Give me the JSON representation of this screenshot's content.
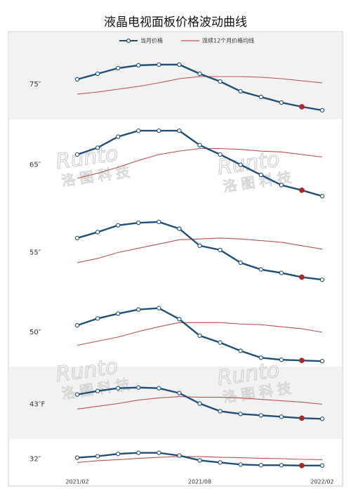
{
  "chart_data": {
    "type": "line",
    "title": "液晶电视面板价格波动曲线",
    "watermark": "Runto",
    "watermark_cn": "洛图科技",
    "categories": [
      "2021/02",
      null,
      null,
      null,
      null,
      null,
      "2021/08",
      null,
      null,
      null,
      null,
      null,
      "2022/02"
    ],
    "series": [
      {
        "name": "当月价格",
        "color": "#1f4e79",
        "marker": true
      },
      {
        "name": "连续12个月价格均线",
        "color": "#c0504d",
        "marker": false
      }
    ],
    "highlight_index": 11,
    "highlight_color": "#a52a2a",
    "panels": [
      {
        "label": "75″",
        "background": "#f2f2f2",
        "ylim": [
          0,
          100
        ],
        "values": [
          [
            57,
            65,
            73,
            77,
            78,
            78,
            65,
            54,
            40,
            32,
            24,
            18,
            13
          ],
          [
            36,
            39,
            43,
            47,
            52,
            58,
            61,
            61,
            61,
            60,
            58,
            55,
            52
          ]
        ]
      },
      {
        "label": "65″",
        "background": "#ffffff",
        "ylim": [
          0,
          100
        ],
        "values": [
          [
            62,
            70,
            83,
            90,
            90,
            90,
            73,
            62,
            50,
            38,
            26,
            20,
            13
          ],
          [
            34,
            40,
            47,
            55,
            62,
            66,
            69,
            69,
            68,
            66,
            65,
            62,
            59
          ]
        ]
      },
      {
        "label": "55″",
        "background": "#ffffff",
        "ylim": [
          0,
          100
        ],
        "values": [
          [
            67,
            74,
            82,
            85,
            86,
            78,
            58,
            53,
            38,
            30,
            26,
            21,
            18
          ],
          [
            38,
            43,
            50,
            55,
            60,
            65,
            66,
            67,
            66,
            64,
            62,
            58,
            54
          ]
        ]
      },
      {
        "label": "50″",
        "background": "#ffffff",
        "ylim": [
          0,
          100
        ],
        "values": [
          [
            60,
            70,
            77,
            83,
            85,
            69,
            45,
            35,
            23,
            13,
            10,
            9,
            8
          ],
          [
            31,
            37,
            43,
            51,
            58,
            64,
            64,
            64,
            62,
            61,
            58,
            55,
            50
          ]
        ]
      },
      {
        "label": "43″F",
        "background": "#f2f2f2",
        "ylim": [
          0,
          100
        ],
        "values": [
          [
            64,
            69,
            73,
            74,
            73,
            66,
            51,
            40,
            36,
            34,
            32,
            30,
            29
          ],
          [
            43,
            47,
            51,
            56,
            59,
            61,
            60,
            60,
            59,
            57,
            55,
            53,
            50
          ]
        ]
      },
      {
        "label": "32″",
        "background": "#ffffff",
        "ylim": [
          0,
          100
        ],
        "values": [
          [
            54,
            58,
            65,
            68,
            68,
            60,
            46,
            40,
            34,
            32,
            32,
            31,
            31
          ],
          [
            40,
            45,
            48,
            52,
            55,
            57,
            57,
            55,
            54,
            52,
            51,
            49,
            48
          ]
        ]
      }
    ]
  }
}
